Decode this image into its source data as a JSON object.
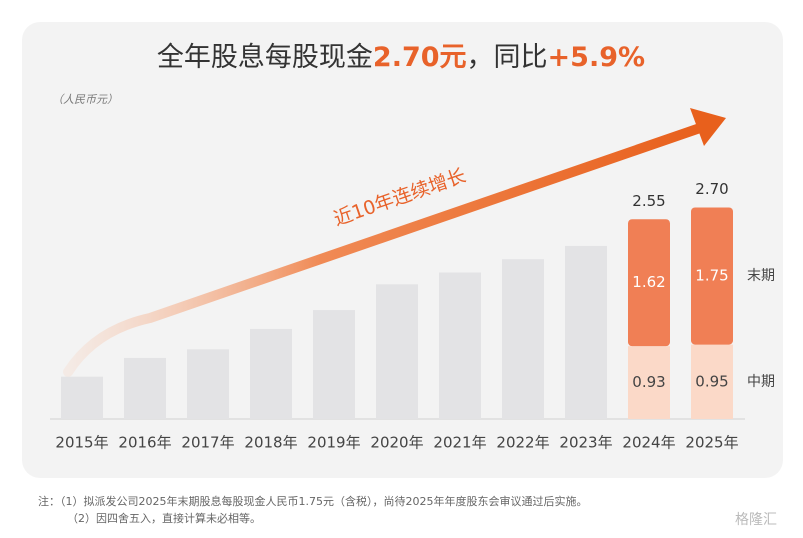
{
  "chart_data": {
    "type": "stacked_bar",
    "title_parts": [
      "全年股息每股现金",
      "2.70元",
      "，同比",
      "+5.9%"
    ],
    "unit": "（人民币元）",
    "annotation": "近10年连续增长",
    "categories": [
      "2015年",
      "2016年",
      "2017年",
      "2018年",
      "2019年",
      "2020年",
      "2021年",
      "2022年",
      "2023年",
      "2024年",
      "2025年"
    ],
    "values": [
      0.54,
      0.78,
      0.89,
      1.15,
      1.39,
      1.72,
      1.87,
      2.04,
      2.21,
      null,
      null
    ],
    "color": "#e3e3e5",
    "series": [
      {
        "name": "中期",
        "color": "#fbd9c8",
        "values": [
          null,
          null,
          null,
          null,
          null,
          null,
          null,
          null,
          null,
          0.93,
          0.95
        ]
      },
      {
        "name": "末期",
        "color": "#f07f55",
        "values": [
          null,
          null,
          null,
          null,
          null,
          null,
          null,
          null,
          null,
          1.62,
          1.75
        ]
      }
    ],
    "totals": [
      null,
      null,
      null,
      null,
      null,
      null,
      null,
      null,
      null,
      2.55,
      2.7
    ],
    "total_labels": [
      null,
      null,
      null,
      null,
      null,
      null,
      null,
      null,
      null,
      "2.55",
      "2.70"
    ],
    "ylim": [
      0,
      3
    ],
    "grid": false
  },
  "notes": [
    "注：（1）拟派发公司2025年末期股息每股现金人民币1.75元（含税），尚待2025年年度股东会审议通过后实施。",
    "（2）因四舍五入，直接计算未必相等。"
  ],
  "watermark": "格隆汇"
}
